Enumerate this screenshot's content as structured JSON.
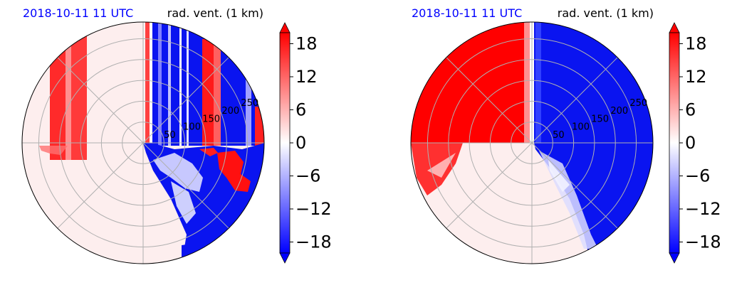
{
  "chart_data": [
    {
      "type": "heatmap",
      "projection": "polar",
      "title_left": "2018-10-11 11 UTC",
      "title_right": "rad. vent. (1 km)",
      "title_left_color": "#0000ff",
      "radial_ticks": [
        "50",
        "100",
        "150",
        "200",
        "250"
      ],
      "radial_tick_values": [
        50,
        100,
        150,
        200,
        250
      ],
      "r_max": 290,
      "grid": true,
      "colormap": "bwr",
      "vmin": -20,
      "vmax": 20,
      "colorbar_ticks": [
        "18",
        "12",
        "6",
        "0",
        "−6",
        "−12",
        "−18"
      ],
      "colorbar_tick_values": [
        18,
        12,
        6,
        0,
        -6,
        -12,
        -18
      ],
      "field": "observed radial velocity with folding artifacts"
    },
    {
      "type": "heatmap",
      "projection": "polar",
      "title_left": "2018-10-11 11 UTC",
      "title_right": "rad. vent. (1 km)",
      "title_left_color": "#0000ff",
      "radial_ticks": [
        "50",
        "100",
        "150",
        "200",
        "250"
      ],
      "radial_tick_values": [
        50,
        100,
        150,
        200,
        250
      ],
      "r_max": 290,
      "grid": true,
      "colormap": "bwr",
      "vmin": -20,
      "vmax": 20,
      "colorbar_ticks": [
        "18",
        "12",
        "6",
        "0",
        "−6",
        "−12",
        "−18"
      ],
      "colorbar_tick_values": [
        18,
        12,
        6,
        0,
        -6,
        -12,
        -18
      ],
      "field": "dealiased radial velocity"
    }
  ],
  "colors": {
    "pos_max": "#ff0000",
    "neg_max": "#0000ff",
    "zero": "#ffffff",
    "grid": "#b0b0b0"
  }
}
